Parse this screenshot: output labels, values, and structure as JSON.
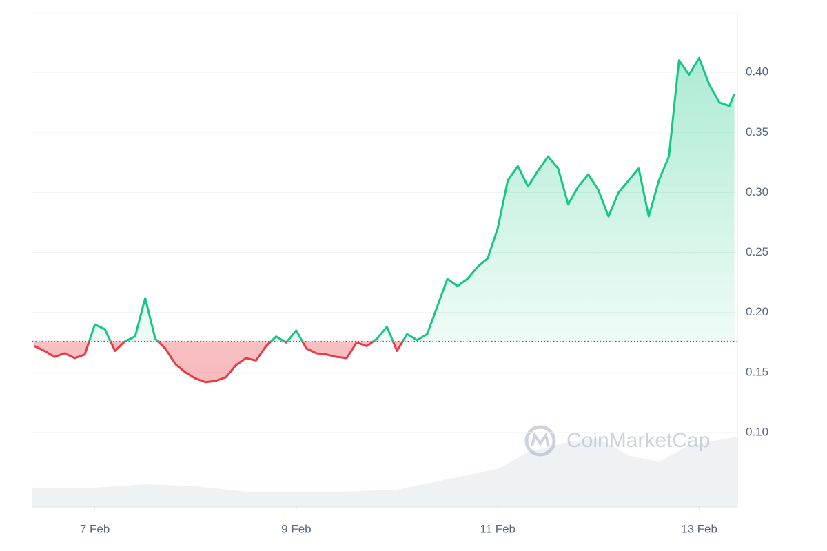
{
  "chart_data": {
    "type": "line",
    "watermark": "CoinMarketCap",
    "xlim": [
      6.38,
      13.38
    ],
    "xticks": [
      {
        "value": 7,
        "label": "7 Feb"
      },
      {
        "value": 9,
        "label": "9 Feb"
      },
      {
        "value": 11,
        "label": "11 Feb"
      },
      {
        "value": 13,
        "label": "13 Feb"
      }
    ],
    "ylim": [
      0.038,
      0.45
    ],
    "yticks": [
      {
        "value": 0.1,
        "label": "0.10"
      },
      {
        "value": 0.15,
        "label": "0.15"
      },
      {
        "value": 0.2,
        "label": "0.20"
      },
      {
        "value": 0.25,
        "label": "0.25"
      },
      {
        "value": 0.3,
        "label": "0.30"
      },
      {
        "value": 0.35,
        "label": "0.35"
      },
      {
        "value": 0.4,
        "label": "0.40"
      }
    ],
    "y2lim": [
      0,
      1
    ],
    "baseline": 0.176,
    "grid": true,
    "up_color": "#16c784",
    "down_color": "#ea3943",
    "series": [
      {
        "name": "Price",
        "color": "#16c784",
        "x": [
          6.4,
          6.5,
          6.6,
          6.7,
          6.8,
          6.9,
          7.0,
          7.1,
          7.2,
          7.3,
          7.4,
          7.5,
          7.6,
          7.7,
          7.8,
          7.9,
          8.0,
          8.1,
          8.2,
          8.3,
          8.4,
          8.5,
          8.6,
          8.7,
          8.8,
          8.9,
          9.0,
          9.1,
          9.2,
          9.3,
          9.4,
          9.5,
          9.6,
          9.7,
          9.8,
          9.9,
          10.0,
          10.1,
          10.2,
          10.3,
          10.4,
          10.5,
          10.6,
          10.7,
          10.8,
          10.9,
          11.0,
          11.1,
          11.2,
          11.3,
          11.4,
          11.5,
          11.6,
          11.7,
          11.8,
          11.9,
          12.0,
          12.1,
          12.2,
          12.3,
          12.4,
          12.5,
          12.6,
          12.7,
          12.8,
          12.9,
          13.0,
          13.1,
          13.2,
          13.3,
          13.35
        ],
        "values": [
          0.172,
          0.168,
          0.163,
          0.166,
          0.162,
          0.165,
          0.19,
          0.186,
          0.168,
          0.176,
          0.18,
          0.212,
          0.178,
          0.17,
          0.157,
          0.15,
          0.145,
          0.142,
          0.143,
          0.146,
          0.156,
          0.162,
          0.16,
          0.172,
          0.18,
          0.175,
          0.185,
          0.17,
          0.166,
          0.165,
          0.163,
          0.162,
          0.175,
          0.172,
          0.178,
          0.188,
          0.168,
          0.182,
          0.177,
          0.182,
          0.205,
          0.228,
          0.222,
          0.228,
          0.238,
          0.245,
          0.27,
          0.31,
          0.322,
          0.305,
          0.318,
          0.33,
          0.32,
          0.29,
          0.305,
          0.315,
          0.302,
          0.28,
          0.3,
          0.31,
          0.32,
          0.28,
          0.31,
          0.33,
          0.41,
          0.398,
          0.412,
          0.39,
          0.375,
          0.372,
          0.382
        ]
      },
      {
        "name": "Volume",
        "color": "#eff2f5",
        "axis": "y2",
        "x": [
          6.38,
          7.0,
          7.5,
          8.0,
          8.5,
          9.0,
          9.5,
          10.0,
          10.5,
          11.0,
          11.3,
          11.7,
          12.0,
          12.3,
          12.6,
          12.9,
          13.38
        ],
        "values": [
          0.038,
          0.039,
          0.046,
          0.042,
          0.031,
          0.031,
          0.031,
          0.035,
          0.056,
          0.077,
          0.111,
          0.132,
          0.139,
          0.104,
          0.091,
          0.125,
          0.142
        ]
      }
    ]
  }
}
